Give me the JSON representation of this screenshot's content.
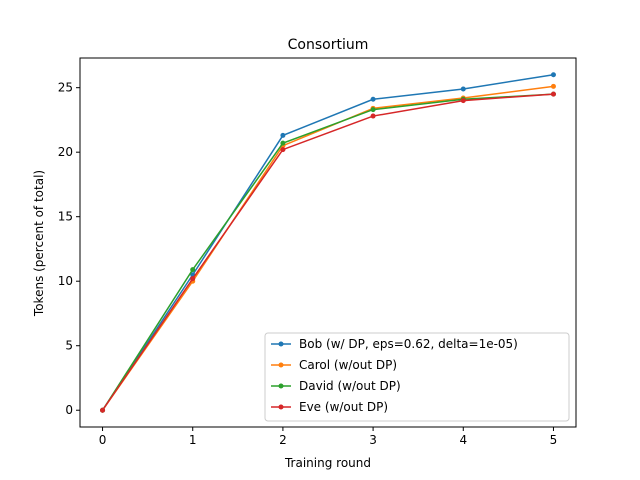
{
  "chart_data": {
    "type": "line",
    "title": "Consortium",
    "xlabel": "Training round",
    "ylabel": "Tokens (percent of total)",
    "x": [
      0,
      1,
      2,
      3,
      4,
      5
    ],
    "xlim": [
      -0.25,
      5.25
    ],
    "ylim": [
      -1.3,
      27.3
    ],
    "xticks": [
      0,
      1,
      2,
      3,
      4,
      5
    ],
    "yticks": [
      0,
      5,
      10,
      15,
      20,
      25
    ],
    "grid": false,
    "legend_position": "lower-right",
    "series": [
      {
        "name": "Bob (w/ DP, eps=0.62, delta=1e-05)",
        "color": "#1f77b4",
        "values": [
          0,
          10.5,
          21.3,
          24.1,
          24.9,
          26.0
        ]
      },
      {
        "name": "Carol (w/out DP)",
        "color": "#ff7f0e",
        "values": [
          0,
          10.0,
          20.5,
          23.4,
          24.2,
          25.1
        ]
      },
      {
        "name": "David (w/out DP)",
        "color": "#2ca02c",
        "values": [
          0,
          10.9,
          20.7,
          23.3,
          24.1,
          24.5
        ]
      },
      {
        "name": "Eve (w/out DP)",
        "color": "#d62728",
        "values": [
          0,
          10.2,
          20.2,
          22.8,
          24.0,
          24.5
        ]
      }
    ]
  }
}
